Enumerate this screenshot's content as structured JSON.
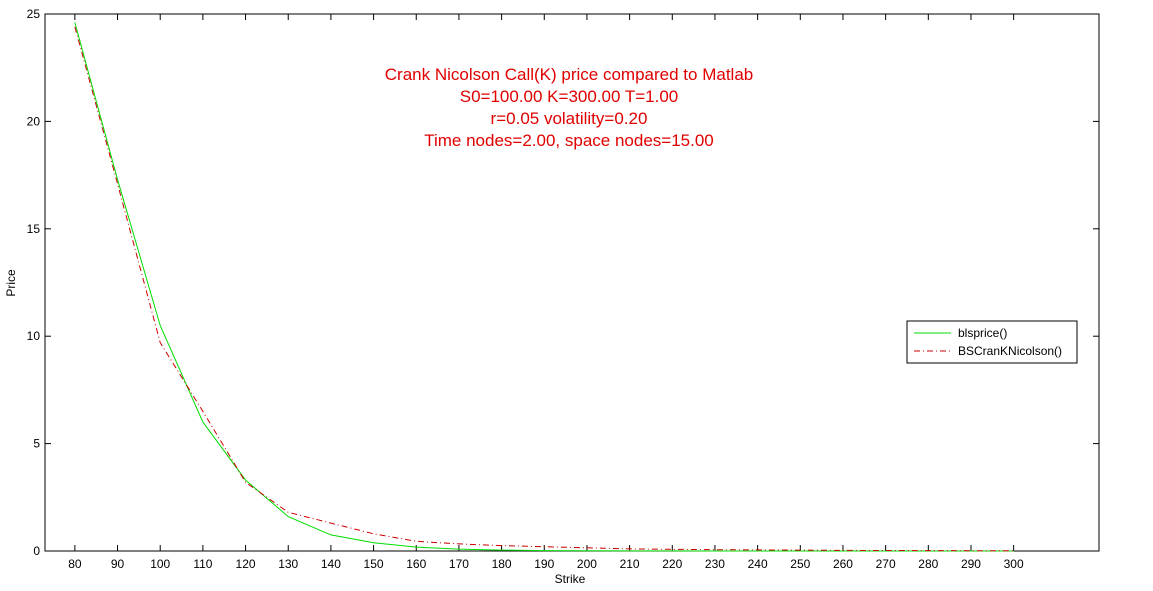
{
  "chart_data": {
    "type": "line",
    "title_lines": [
      "Crank Nicolson Call(K) price compared to Matlab",
      "S0=100.00 K=300.00 T=1.00",
      "r=0.05 volatility=0.20",
      "Time nodes=2.00, space nodes=15.00"
    ],
    "title_color": "#e00000",
    "xlabel": "Strike",
    "ylabel": "Price",
    "xlim": [
      73,
      320
    ],
    "ylim": [
      0,
      25
    ],
    "xticks": [
      80,
      90,
      100,
      110,
      120,
      130,
      140,
      150,
      160,
      170,
      180,
      190,
      200,
      210,
      220,
      230,
      240,
      250,
      260,
      270,
      280,
      290,
      300
    ],
    "yticks": [
      0,
      5,
      10,
      15,
      20,
      25
    ],
    "grid": false,
    "legend_position": "right",
    "x": [
      80,
      90,
      100,
      110,
      120,
      130,
      140,
      150,
      160,
      170,
      180,
      190,
      200,
      210,
      220,
      230,
      240,
      250,
      260,
      270,
      280,
      290,
      300
    ],
    "series": [
      {
        "name": "blsprice()",
        "color": "#00dd00",
        "style": "solid",
        "values": [
          24.6,
          17.3,
          10.5,
          6.0,
          3.3,
          1.6,
          0.75,
          0.38,
          0.18,
          0.09,
          0.04,
          0.02,
          0.01,
          0.005,
          0.003,
          0.001,
          0.0,
          0.0,
          0.0,
          0.0,
          0.0,
          0.0,
          0.0
        ]
      },
      {
        "name": "BSCranKNicolson()",
        "color": "#cc0000",
        "style": "dashdot",
        "values": [
          24.4,
          17.1,
          9.7,
          6.5,
          3.2,
          1.8,
          1.3,
          0.8,
          0.45,
          0.33,
          0.25,
          0.2,
          0.15,
          0.1,
          0.08,
          0.06,
          0.05,
          0.04,
          0.03,
          0.025,
          0.02,
          0.015,
          0.01
        ]
      }
    ]
  }
}
